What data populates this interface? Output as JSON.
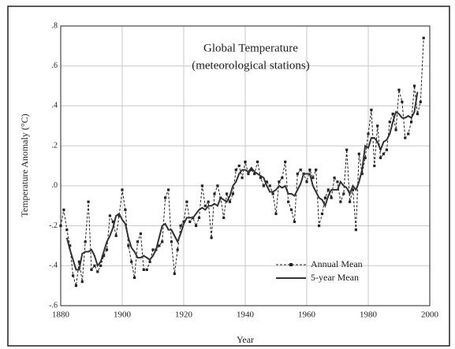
{
  "chart_data": {
    "type": "line",
    "title": "Global Temperature",
    "subtitle": "(meteorological stations)",
    "x_label": "Year",
    "y_label": "Temperature Anomaly (°C)",
    "x": [
      1880,
      1881,
      1882,
      1883,
      1884,
      1885,
      1886,
      1887,
      1888,
      1889,
      1890,
      1891,
      1892,
      1893,
      1894,
      1895,
      1896,
      1897,
      1898,
      1899,
      1900,
      1901,
      1902,
      1903,
      1904,
      1905,
      1906,
      1907,
      1908,
      1909,
      1910,
      1911,
      1912,
      1913,
      1914,
      1915,
      1916,
      1917,
      1918,
      1919,
      1920,
      1921,
      1922,
      1923,
      1924,
      1925,
      1926,
      1927,
      1928,
      1929,
      1930,
      1931,
      1932,
      1933,
      1934,
      1935,
      1936,
      1937,
      1938,
      1939,
      1940,
      1941,
      1942,
      1943,
      1944,
      1945,
      1946,
      1947,
      1948,
      1949,
      1950,
      1951,
      1952,
      1953,
      1954,
      1955,
      1956,
      1957,
      1958,
      1959,
      1960,
      1961,
      1962,
      1963,
      1964,
      1965,
      1966,
      1967,
      1968,
      1969,
      1970,
      1971,
      1972,
      1973,
      1974,
      1975,
      1976,
      1977,
      1978,
      1979,
      1980,
      1981,
      1982,
      1983,
      1984,
      1985,
      1986,
      1987,
      1988,
      1989,
      1990,
      1991,
      1992,
      1993,
      1994,
      1995,
      1996,
      1997,
      1998
    ],
    "series": [
      {
        "name": "Annual Mean",
        "color": "#222222",
        "dashed": true,
        "markers": true,
        "values": [
          -0.2,
          -0.12,
          -0.22,
          -0.3,
          -0.45,
          -0.5,
          -0.38,
          -0.48,
          -0.28,
          -0.08,
          -0.42,
          -0.4,
          -0.43,
          -0.4,
          -0.35,
          -0.32,
          -0.15,
          -0.18,
          -0.25,
          -0.15,
          -0.02,
          -0.12,
          -0.3,
          -0.38,
          -0.46,
          -0.28,
          -0.24,
          -0.42,
          -0.42,
          -0.38,
          -0.32,
          -0.32,
          -0.3,
          -0.28,
          -0.06,
          -0.02,
          -0.28,
          -0.44,
          -0.32,
          -0.2,
          -0.18,
          -0.08,
          -0.18,
          -0.16,
          -0.2,
          -0.16,
          0.0,
          -0.1,
          -0.08,
          -0.26,
          -0.04,
          0.0,
          -0.06,
          -0.16,
          -0.04,
          -0.08,
          -0.04,
          0.08,
          0.1,
          0.04,
          0.12,
          0.06,
          0.08,
          0.06,
          0.12,
          0.04,
          0.0,
          0.02,
          0.0,
          -0.04,
          -0.14,
          0.02,
          0.04,
          0.12,
          -0.08,
          -0.12,
          -0.18,
          0.06,
          0.08,
          0.06,
          0.02,
          0.08,
          0.04,
          0.08,
          -0.2,
          -0.14,
          -0.06,
          -0.02,
          -0.06,
          0.04,
          0.02,
          -0.08,
          -0.04,
          0.18,
          -0.08,
          -0.02,
          -0.22,
          0.16,
          0.06,
          0.14,
          0.26,
          0.38,
          0.1,
          0.3,
          0.14,
          0.16,
          0.18,
          0.32,
          0.36,
          0.28,
          0.48,
          0.42,
          0.24,
          0.26,
          0.32,
          0.5,
          0.36,
          0.42,
          0.74
        ]
      },
      {
        "name": "5-year Mean",
        "color": "#333333",
        "dashed": false,
        "markers": false,
        "values": [
          null,
          null,
          -0.26,
          -0.32,
          -0.37,
          -0.42,
          -0.42,
          -0.34,
          -0.33,
          -0.33,
          -0.32,
          -0.35,
          -0.4,
          -0.38,
          -0.33,
          -0.28,
          -0.25,
          -0.21,
          -0.15,
          -0.14,
          -0.17,
          -0.19,
          -0.26,
          -0.31,
          -0.33,
          -0.36,
          -0.36,
          -0.35,
          -0.36,
          -0.37,
          -0.35,
          -0.32,
          -0.26,
          -0.2,
          -0.19,
          -0.22,
          -0.22,
          -0.25,
          -0.28,
          -0.24,
          -0.19,
          -0.16,
          -0.16,
          -0.16,
          -0.14,
          -0.12,
          -0.11,
          -0.12,
          -0.1,
          -0.1,
          -0.09,
          -0.1,
          -0.06,
          -0.07,
          -0.08,
          -0.05,
          0.0,
          0.02,
          0.06,
          0.08,
          0.08,
          0.07,
          0.09,
          0.07,
          0.06,
          0.05,
          0.04,
          0.0,
          -0.03,
          -0.03,
          -0.02,
          0.0,
          -0.01,
          0.0,
          -0.04,
          -0.04,
          -0.05,
          -0.02,
          0.01,
          0.06,
          0.06,
          0.06,
          0.0,
          -0.03,
          -0.06,
          -0.07,
          -0.1,
          -0.05,
          -0.02,
          -0.02,
          -0.02,
          0.02,
          0.0,
          -0.01,
          -0.04,
          0.0,
          -0.02,
          0.02,
          0.08,
          0.2,
          0.19,
          0.24,
          0.24,
          0.22,
          0.18,
          0.22,
          0.23,
          0.26,
          0.32,
          0.37,
          0.36,
          0.34,
          0.34,
          0.35,
          0.34,
          0.37,
          0.47,
          null,
          null
        ]
      }
    ],
    "xlim": [
      1880,
      2000
    ],
    "xticks": [
      1880,
      1900,
      1920,
      1940,
      1960,
      1980,
      2000
    ],
    "ylim": [
      -0.6,
      0.8
    ],
    "yticks": [
      {
        "value": -0.6,
        "label": "-.6"
      },
      {
        "value": -0.4,
        "label": "-.4"
      },
      {
        "value": -0.2,
        "label": "-.2"
      },
      {
        "value": 0,
        "label": ".0"
      },
      {
        "value": 0.2,
        "label": ".2"
      },
      {
        "value": 0.4,
        "label": ".4"
      },
      {
        "value": 0.6,
        "label": ".6"
      },
      {
        "value": 0.8,
        "label": ".8"
      }
    ],
    "grid": true,
    "legend": "lower right"
  }
}
